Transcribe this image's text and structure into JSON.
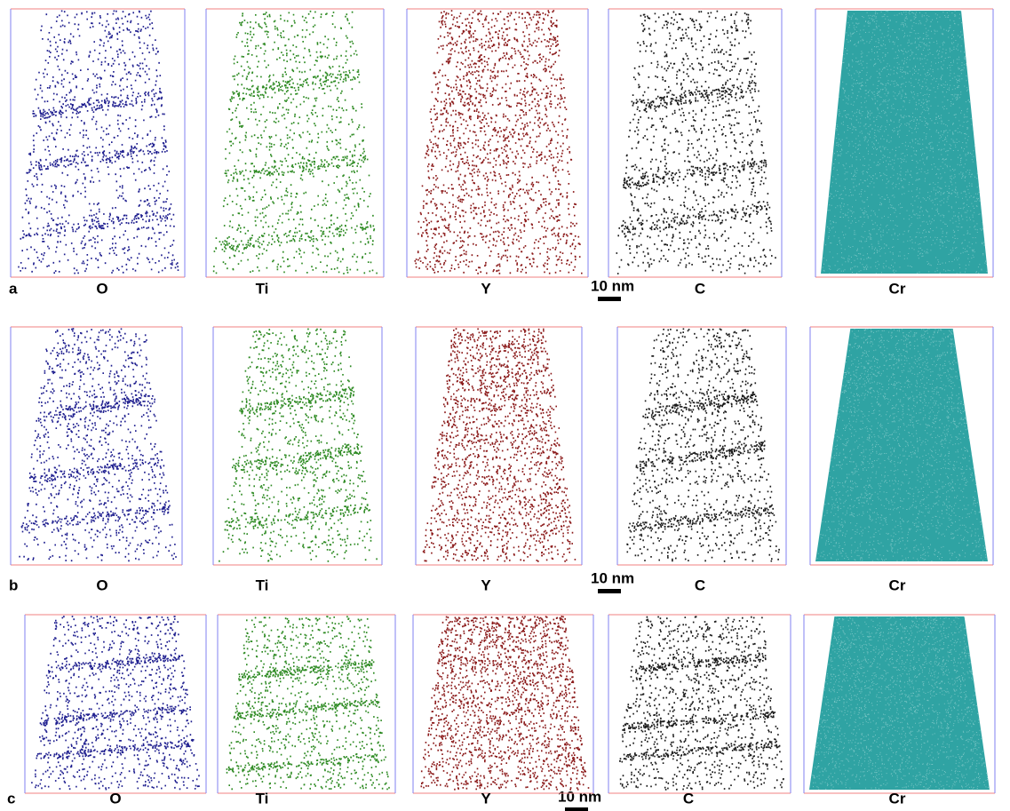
{
  "rows": [
    {
      "label": "a",
      "panels": [
        "O",
        "Ti",
        "Y",
        "C",
        "Cr"
      ],
      "scale_bar": "10 nm"
    },
    {
      "label": "b",
      "panels": [
        "O",
        "Ti",
        "Y",
        "C",
        "Cr"
      ],
      "scale_bar": "10 nm"
    },
    {
      "label": "c",
      "panels": [
        "O",
        "Ti",
        "Y",
        "C",
        "Cr"
      ],
      "scale_bar": "10 nm"
    }
  ]
}
